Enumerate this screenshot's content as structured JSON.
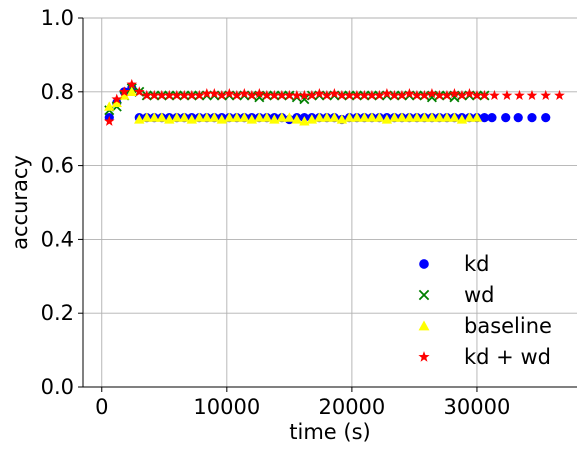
{
  "chart_data": {
    "type": "scatter",
    "title": "",
    "xlabel": "time (s)",
    "ylabel": "accuracy",
    "xlim": [
      -1500,
      38000
    ],
    "ylim": [
      0.0,
      1.0
    ],
    "xticks": [
      0,
      10000,
      20000,
      30000
    ],
    "yticks": [
      0.0,
      0.2,
      0.4,
      0.6,
      0.8,
      1.0
    ],
    "xtick_labels": [
      "0",
      "10000",
      "20000",
      "30000"
    ],
    "ytick_labels": [
      "0.0",
      "0.2",
      "0.4",
      "0.6",
      "0.8",
      "1.0"
    ],
    "grid": true,
    "legend_placement": "lower-right",
    "series": [
      {
        "name": "kd",
        "marker": "circle",
        "color": "#0000ff",
        "points": [
          [
            600,
            0.73
          ],
          [
            1200,
            0.77
          ],
          [
            1800,
            0.8
          ],
          [
            2400,
            0.81
          ],
          [
            3000,
            0.73
          ],
          [
            3600,
            0.73
          ],
          [
            4200,
            0.73
          ],
          [
            4800,
            0.73
          ],
          [
            5400,
            0.73
          ],
          [
            6000,
            0.73
          ],
          [
            6600,
            0.73
          ],
          [
            7200,
            0.73
          ],
          [
            7800,
            0.73
          ],
          [
            8400,
            0.73
          ],
          [
            9000,
            0.73
          ],
          [
            9600,
            0.73
          ],
          [
            10200,
            0.73
          ],
          [
            10800,
            0.73
          ],
          [
            11400,
            0.73
          ],
          [
            12000,
            0.73
          ],
          [
            12600,
            0.73
          ],
          [
            13200,
            0.73
          ],
          [
            13800,
            0.73
          ],
          [
            14400,
            0.73
          ],
          [
            15000,
            0.725
          ],
          [
            15600,
            0.73
          ],
          [
            16200,
            0.73
          ],
          [
            16800,
            0.73
          ],
          [
            17400,
            0.73
          ],
          [
            18000,
            0.73
          ],
          [
            18600,
            0.73
          ],
          [
            19200,
            0.725
          ],
          [
            19800,
            0.73
          ],
          [
            20400,
            0.73
          ],
          [
            21000,
            0.73
          ],
          [
            21600,
            0.73
          ],
          [
            22200,
            0.73
          ],
          [
            22800,
            0.73
          ],
          [
            23400,
            0.73
          ],
          [
            24000,
            0.73
          ],
          [
            24600,
            0.73
          ],
          [
            25200,
            0.73
          ],
          [
            25800,
            0.73
          ],
          [
            26400,
            0.73
          ],
          [
            27000,
            0.73
          ],
          [
            27600,
            0.73
          ],
          [
            28200,
            0.73
          ],
          [
            28800,
            0.73
          ],
          [
            29400,
            0.73
          ],
          [
            30000,
            0.73
          ],
          [
            30600,
            0.73
          ],
          [
            31200,
            0.73
          ],
          [
            32300,
            0.73
          ],
          [
            33300,
            0.73
          ],
          [
            34400,
            0.73
          ],
          [
            35500,
            0.73
          ]
        ]
      },
      {
        "name": "wd",
        "marker": "x",
        "color": "#008000",
        "points": [
          [
            600,
            0.75
          ],
          [
            1200,
            0.76
          ],
          [
            1800,
            0.79
          ],
          [
            2400,
            0.81
          ],
          [
            3000,
            0.8
          ],
          [
            3600,
            0.79
          ],
          [
            4200,
            0.79
          ],
          [
            4800,
            0.79
          ],
          [
            5400,
            0.79
          ],
          [
            6000,
            0.79
          ],
          [
            6600,
            0.79
          ],
          [
            7200,
            0.79
          ],
          [
            7800,
            0.79
          ],
          [
            8400,
            0.79
          ],
          [
            9000,
            0.79
          ],
          [
            9600,
            0.79
          ],
          [
            10200,
            0.79
          ],
          [
            10800,
            0.79
          ],
          [
            11400,
            0.79
          ],
          [
            12000,
            0.79
          ],
          [
            12600,
            0.785
          ],
          [
            13200,
            0.79
          ],
          [
            13800,
            0.79
          ],
          [
            14400,
            0.79
          ],
          [
            15000,
            0.79
          ],
          [
            15600,
            0.785
          ],
          [
            16200,
            0.78
          ],
          [
            16800,
            0.79
          ],
          [
            17400,
            0.79
          ],
          [
            18000,
            0.79
          ],
          [
            18600,
            0.79
          ],
          [
            19200,
            0.79
          ],
          [
            19800,
            0.79
          ],
          [
            20400,
            0.79
          ],
          [
            21000,
            0.79
          ],
          [
            21600,
            0.79
          ],
          [
            22200,
            0.79
          ],
          [
            22800,
            0.79
          ],
          [
            23400,
            0.79
          ],
          [
            24000,
            0.79
          ],
          [
            24600,
            0.79
          ],
          [
            25200,
            0.79
          ],
          [
            25800,
            0.79
          ],
          [
            26400,
            0.785
          ],
          [
            27000,
            0.79
          ],
          [
            27600,
            0.79
          ],
          [
            28200,
            0.785
          ],
          [
            28800,
            0.79
          ],
          [
            29400,
            0.79
          ],
          [
            30000,
            0.79
          ],
          [
            30600,
            0.79
          ]
        ]
      },
      {
        "name": "baseline",
        "marker": "triangle",
        "color": "#ffff00",
        "points": [
          [
            600,
            0.76
          ],
          [
            1200,
            0.77
          ],
          [
            1800,
            0.79
          ],
          [
            2400,
            0.8
          ],
          [
            3000,
            0.725
          ],
          [
            3600,
            0.73
          ],
          [
            4200,
            0.73
          ],
          [
            4800,
            0.73
          ],
          [
            5400,
            0.725
          ],
          [
            6000,
            0.73
          ],
          [
            6600,
            0.73
          ],
          [
            7200,
            0.725
          ],
          [
            7800,
            0.73
          ],
          [
            8400,
            0.73
          ],
          [
            9000,
            0.73
          ],
          [
            9600,
            0.725
          ],
          [
            10200,
            0.73
          ],
          [
            10800,
            0.73
          ],
          [
            11400,
            0.73
          ],
          [
            12000,
            0.725
          ],
          [
            12600,
            0.73
          ],
          [
            13200,
            0.73
          ],
          [
            13800,
            0.725
          ],
          [
            14400,
            0.73
          ],
          [
            15000,
            0.73
          ],
          [
            15600,
            0.725
          ],
          [
            16200,
            0.72
          ],
          [
            16800,
            0.725
          ],
          [
            17400,
            0.73
          ],
          [
            18000,
            0.73
          ],
          [
            18600,
            0.73
          ],
          [
            19200,
            0.725
          ],
          [
            19800,
            0.73
          ],
          [
            20400,
            0.73
          ],
          [
            21000,
            0.73
          ],
          [
            21600,
            0.73
          ],
          [
            22200,
            0.73
          ],
          [
            22800,
            0.725
          ],
          [
            23400,
            0.73
          ],
          [
            24000,
            0.73
          ],
          [
            24600,
            0.73
          ],
          [
            25200,
            0.73
          ],
          [
            25800,
            0.73
          ],
          [
            26400,
            0.73
          ],
          [
            27000,
            0.73
          ],
          [
            27600,
            0.73
          ],
          [
            28200,
            0.73
          ],
          [
            28800,
            0.725
          ],
          [
            29400,
            0.73
          ],
          [
            30000,
            0.73
          ]
        ]
      },
      {
        "name": "kd + wd",
        "marker": "star",
        "color": "#ff0000",
        "points": [
          [
            600,
            0.72
          ],
          [
            1200,
            0.78
          ],
          [
            1800,
            0.8
          ],
          [
            2400,
            0.82
          ],
          [
            3000,
            0.8
          ],
          [
            3600,
            0.79
          ],
          [
            4200,
            0.79
          ],
          [
            4800,
            0.79
          ],
          [
            5400,
            0.79
          ],
          [
            6000,
            0.79
          ],
          [
            6600,
            0.79
          ],
          [
            7200,
            0.79
          ],
          [
            7800,
            0.79
          ],
          [
            8400,
            0.795
          ],
          [
            9000,
            0.795
          ],
          [
            9600,
            0.79
          ],
          [
            10200,
            0.795
          ],
          [
            10800,
            0.79
          ],
          [
            11400,
            0.795
          ],
          [
            12000,
            0.79
          ],
          [
            12600,
            0.795
          ],
          [
            13200,
            0.79
          ],
          [
            13800,
            0.79
          ],
          [
            14400,
            0.79
          ],
          [
            15000,
            0.79
          ],
          [
            15600,
            0.79
          ],
          [
            16200,
            0.79
          ],
          [
            16800,
            0.79
          ],
          [
            17400,
            0.795
          ],
          [
            18000,
            0.79
          ],
          [
            18600,
            0.795
          ],
          [
            19200,
            0.79
          ],
          [
            19800,
            0.79
          ],
          [
            20400,
            0.79
          ],
          [
            21000,
            0.79
          ],
          [
            21600,
            0.79
          ],
          [
            22200,
            0.79
          ],
          [
            22800,
            0.795
          ],
          [
            23400,
            0.79
          ],
          [
            24000,
            0.79
          ],
          [
            24600,
            0.795
          ],
          [
            25200,
            0.79
          ],
          [
            25800,
            0.79
          ],
          [
            26400,
            0.795
          ],
          [
            27000,
            0.79
          ],
          [
            27600,
            0.79
          ],
          [
            28200,
            0.795
          ],
          [
            28800,
            0.79
          ],
          [
            29400,
            0.795
          ],
          [
            30000,
            0.79
          ],
          [
            30600,
            0.79
          ],
          [
            31400,
            0.79
          ],
          [
            32400,
            0.79
          ],
          [
            33400,
            0.79
          ],
          [
            34400,
            0.79
          ],
          [
            35500,
            0.79
          ],
          [
            36600,
            0.79
          ]
        ]
      }
    ]
  }
}
